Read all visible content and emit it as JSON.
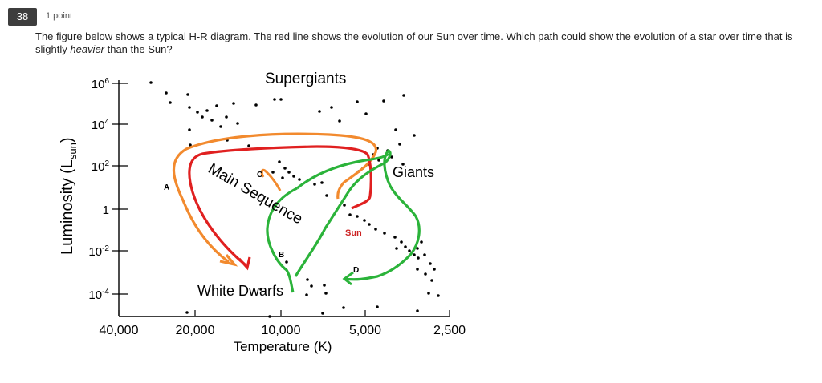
{
  "question": {
    "number": "38",
    "points": "1 point",
    "text_before": "The figure below shows a typical H-R diagram. The red line shows the evolution of our Sun over time. Which path could show the evolution of a star over time that is slightly ",
    "text_emphasis": "heavier",
    "text_after": " than the Sun?"
  },
  "chart_data": {
    "type": "scatter",
    "xlabel": "Temperature (K)",
    "ylabel_main": "Luminosity (L",
    "ylabel_sub": "sun",
    "ylabel_close": ")",
    "x_ticks": [
      "40,000",
      "20,000",
      "10,000",
      "5,000",
      "2,500"
    ],
    "y_ticks": [
      {
        "base": "10",
        "exp": "6"
      },
      {
        "base": "10",
        "exp": "4"
      },
      {
        "base": "10",
        "exp": "2"
      },
      {
        "base": "1",
        "exp": ""
      },
      {
        "base": "10",
        "exp": "-2"
      },
      {
        "base": "10",
        "exp": "-4"
      }
    ],
    "region_labels": {
      "supergiants": "Supergiants",
      "giants": "Giants",
      "main_sequence": "Main Sequence",
      "white_dwarfs": "White Dwarfs",
      "sun": "Sun"
    },
    "path_labels": [
      "A",
      "B",
      "C",
      "D"
    ],
    "colors": {
      "sun_path": "#e02020",
      "orange_path": "#f28a2e",
      "green_path": "#2bb33a",
      "sun_label": "#cc2222"
    }
  }
}
